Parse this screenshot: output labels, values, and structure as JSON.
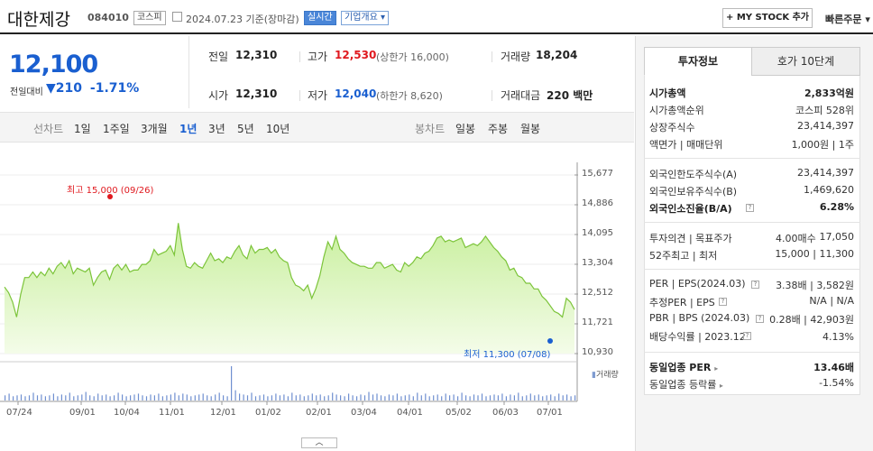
{
  "header": {
    "name": "대한제강",
    "code": "084010",
    "market": "코스피",
    "date": "2024.07.23  기준(장마감)",
    "realtime": "실시간",
    "company_overview": "기업개요",
    "mystock_button": "+ MY STOCK 추가",
    "quick_order": "빠른주문"
  },
  "price": {
    "current": "12,100",
    "change_label": "전일대비",
    "change_arrow": "▼",
    "change_value": "210",
    "change_pct": "-1.71%"
  },
  "quote": {
    "prev_close_label": "전일",
    "prev_close": "12,310",
    "open_label": "시가",
    "open": "12,310",
    "high_label": "고가",
    "high": "12,530",
    "upper_limit": "(상한가 16,000)",
    "low_label": "저가",
    "low": "12,040",
    "lower_limit": "(하한가 8,620)",
    "volume_label": "거래량",
    "volume": "18,204",
    "amount_label": "거래대금",
    "amount": "220 백만"
  },
  "tabs": {
    "line_chart_label": "선차트",
    "periods": [
      "1일",
      "1주일",
      "3개월",
      "1년",
      "3년",
      "5년",
      "10년"
    ],
    "active_period": "1년",
    "candle_label": "봉차트",
    "candle_periods": [
      "일봉",
      "주봉",
      "월봉"
    ]
  },
  "chart_data": {
    "type": "area",
    "y_ticks": [
      "15,677",
      "14,886",
      "14,095",
      "13,304",
      "12,512",
      "11,721",
      "10,930"
    ],
    "ylim": [
      10930,
      15677
    ],
    "x_ticks": [
      "07/24",
      "09/01",
      "10/04",
      "11/01",
      "12/01",
      "01/02",
      "02/01",
      "03/04",
      "04/01",
      "05/02",
      "06/03",
      "07/01"
    ],
    "high_note": "최고 15,000 (09/26)",
    "low_note": "최저 11,300 (07/08)",
    "volume_legend": "거래량",
    "series": [
      {
        "values": [
          12700,
          12550,
          12300,
          11900,
          12500,
          12950,
          12950,
          13100,
          12950,
          13100,
          13000,
          13200,
          13050,
          13250,
          13350,
          13200,
          13400,
          13050,
          13200,
          13150,
          13100,
          13200,
          12750,
          12950,
          13100,
          13150,
          12900,
          13200,
          13300,
          13150,
          13300,
          13100,
          13150,
          13150,
          13300,
          13300,
          13400,
          13700,
          13550,
          13600,
          13650,
          13800,
          13550,
          14400,
          13700,
          13250,
          13200,
          13350,
          13250,
          13200,
          13400,
          13600,
          13400,
          13450,
          13350,
          13500,
          13450,
          13650,
          13800,
          13550,
          13450,
          13800,
          13600,
          13700,
          13700,
          13750,
          13600,
          13700,
          13500,
          13400,
          13350,
          12950,
          12750,
          12700,
          12600,
          12750,
          12400,
          12650,
          13000,
          13500,
          13900,
          13700,
          14050,
          13700,
          13600,
          13450,
          13350,
          13300,
          13250,
          13250,
          13200,
          13200,
          13350,
          13350,
          13200,
          13250,
          13300,
          13150,
          13100,
          13350,
          13250,
          13350,
          13500,
          13450,
          13600,
          13650,
          13800,
          14000,
          14050,
          13900,
          13950,
          13900,
          13950,
          14000,
          13750,
          13800,
          13850,
          13800,
          13900,
          14050,
          13900,
          13750,
          13650,
          13500,
          13400,
          13150,
          13200,
          13000,
          12950,
          12800,
          12800,
          12650,
          12650,
          12450,
          12350,
          12200,
          12050,
          12000,
          11900,
          12400,
          12300,
          12100
        ]
      }
    ],
    "volume": [
      6,
      8,
      5,
      6,
      7,
      5,
      6,
      9,
      6,
      7,
      5,
      6,
      8,
      5,
      7,
      6,
      9,
      5,
      6,
      7,
      10,
      6,
      5,
      8,
      6,
      7,
      5,
      6,
      9,
      7,
      5,
      6,
      7,
      8,
      6,
      5,
      7,
      6,
      8,
      5,
      6,
      7,
      9,
      6,
      8,
      7,
      5,
      6,
      7,
      8,
      6,
      5,
      7,
      9,
      6,
      5,
      40,
      12,
      8,
      7,
      6,
      9,
      5,
      6,
      7,
      5,
      6,
      8,
      6,
      7,
      5,
      9,
      6,
      7,
      5,
      6,
      8,
      6,
      7,
      5,
      6,
      9,
      7,
      6,
      5,
      8,
      6,
      5,
      7,
      6,
      10,
      7,
      8,
      6,
      5,
      7,
      6,
      8,
      5,
      6,
      7,
      5,
      9,
      6,
      8,
      5,
      6,
      7,
      5,
      8,
      6,
      7,
      5,
      9,
      6,
      5,
      7,
      6,
      8,
      5,
      6,
      7,
      6,
      8,
      5,
      7,
      6,
      9,
      5,
      6,
      8,
      6,
      7,
      5,
      6,
      7,
      5,
      8,
      6,
      7,
      5,
      6
    ]
  },
  "right_panel": {
    "tab_info": "투자정보",
    "tab_orderbook": "호가 10단계",
    "market_cap_label": "시가총액",
    "market_cap": "2,833억원",
    "market_cap_rank_label": "시가총액순위",
    "market_cap_rank": "코스피 528위",
    "shares_label": "상장주식수",
    "shares": "23,414,397",
    "par_label": "액면가 | 매매단위",
    "par": "1,000원 | 1주",
    "foreign_limit_label": "외국인한도주식수(A)",
    "foreign_limit": "23,414,397",
    "foreign_hold_label": "외국인보유주식수(B)",
    "foreign_hold": "1,469,620",
    "foreign_ratio_label": "외국인소진율(B/A)",
    "foreign_ratio": "6.28%",
    "opinion_label": "투자의견 | 목표주가",
    "opinion": "4.00매수",
    "target": "17,050",
    "w52_label": "52주최고 | 최저",
    "w52": "15,000 | 11,300",
    "per_label": "PER | EPS(2024.03)",
    "per": "3.38배 | 3,582원",
    "est_per_label": "추정PER | EPS",
    "est_per": "N/A | N/A",
    "pbr_label": "PBR | BPS (2024.03)",
    "pbr": "0.28배 | 42,903원",
    "dividend_label": "배당수익률 | 2023.12",
    "dividend": "4.13%",
    "industry_per_label": "동일업종 PER",
    "industry_per": "13.46배",
    "industry_chg_label": "동일업종 등락률",
    "industry_chg": "-1.54%"
  }
}
